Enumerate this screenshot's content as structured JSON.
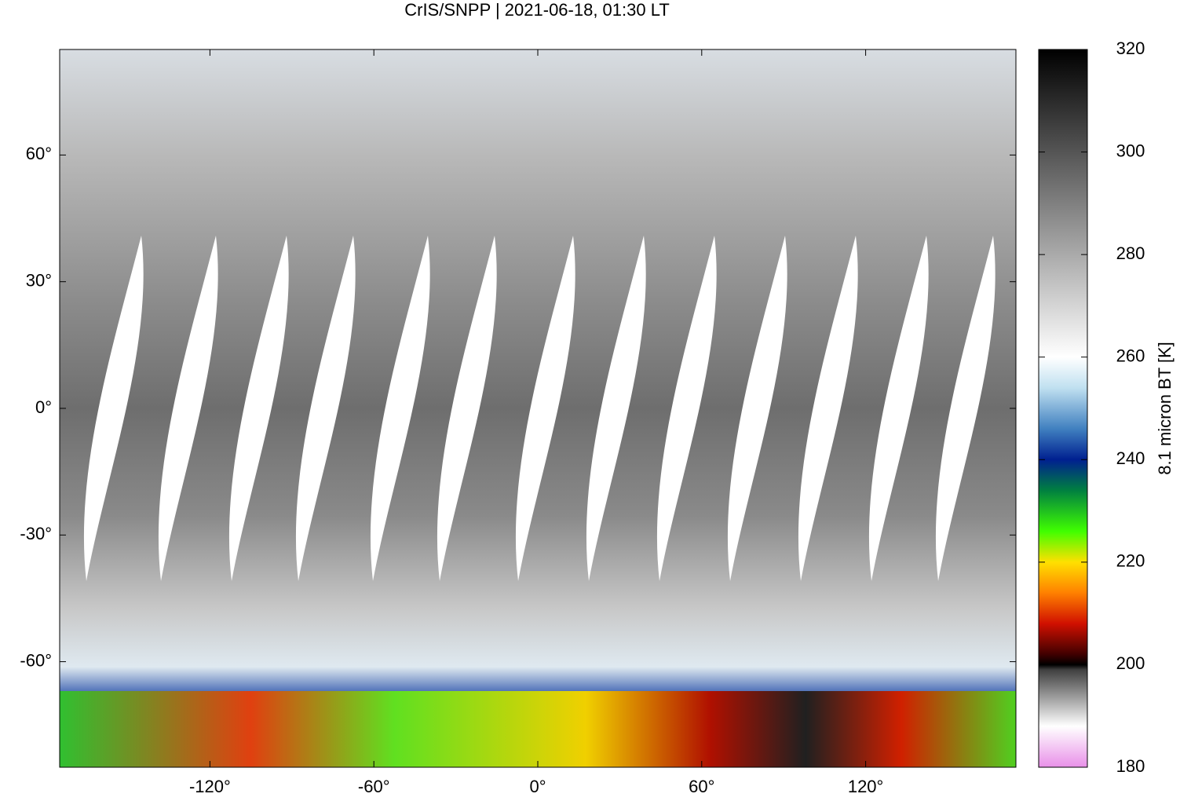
{
  "chart_data": {
    "type": "heatmap",
    "title": "CrIS/SNPP | 2021-06-18, 01:30 LT",
    "xlim": [
      -175,
      175
    ],
    "xticks": [
      {
        "value": -120,
        "label": "-120°"
      },
      {
        "value": -60,
        "label": "-60°"
      },
      {
        "value": 0,
        "label": "0°"
      },
      {
        "value": 60,
        "label": "60°"
      },
      {
        "value": 120,
        "label": "120°"
      }
    ],
    "ylim": [
      -85,
      85
    ],
    "yticks": [
      {
        "value": -60,
        "label": "-60°"
      },
      {
        "value": -30,
        "label": "-30°"
      },
      {
        "value": 0,
        "label": "0°"
      },
      {
        "value": 30,
        "label": "30°"
      },
      {
        "value": 60,
        "label": "60°"
      }
    ],
    "colorbar": {
      "label": "8.1 micron BT [K]",
      "lim": [
        180,
        320
      ],
      "ticks": [
        180,
        200,
        220,
        240,
        260,
        280,
        300,
        320
      ],
      "colormap": [
        [
          180,
          "#e890e8"
        ],
        [
          188,
          "#ffffff"
        ],
        [
          199,
          "#404040"
        ],
        [
          200,
          "#000000"
        ],
        [
          202,
          "#400000"
        ],
        [
          208,
          "#d01000"
        ],
        [
          214,
          "#ff8000"
        ],
        [
          220,
          "#ffe000"
        ],
        [
          226,
          "#40ff00"
        ],
        [
          234,
          "#008040"
        ],
        [
          240,
          "#002090"
        ],
        [
          246,
          "#4080c0"
        ],
        [
          254,
          "#c0e0f0"
        ],
        [
          260,
          "#ffffff"
        ],
        [
          320,
          "#000000"
        ]
      ]
    }
  }
}
